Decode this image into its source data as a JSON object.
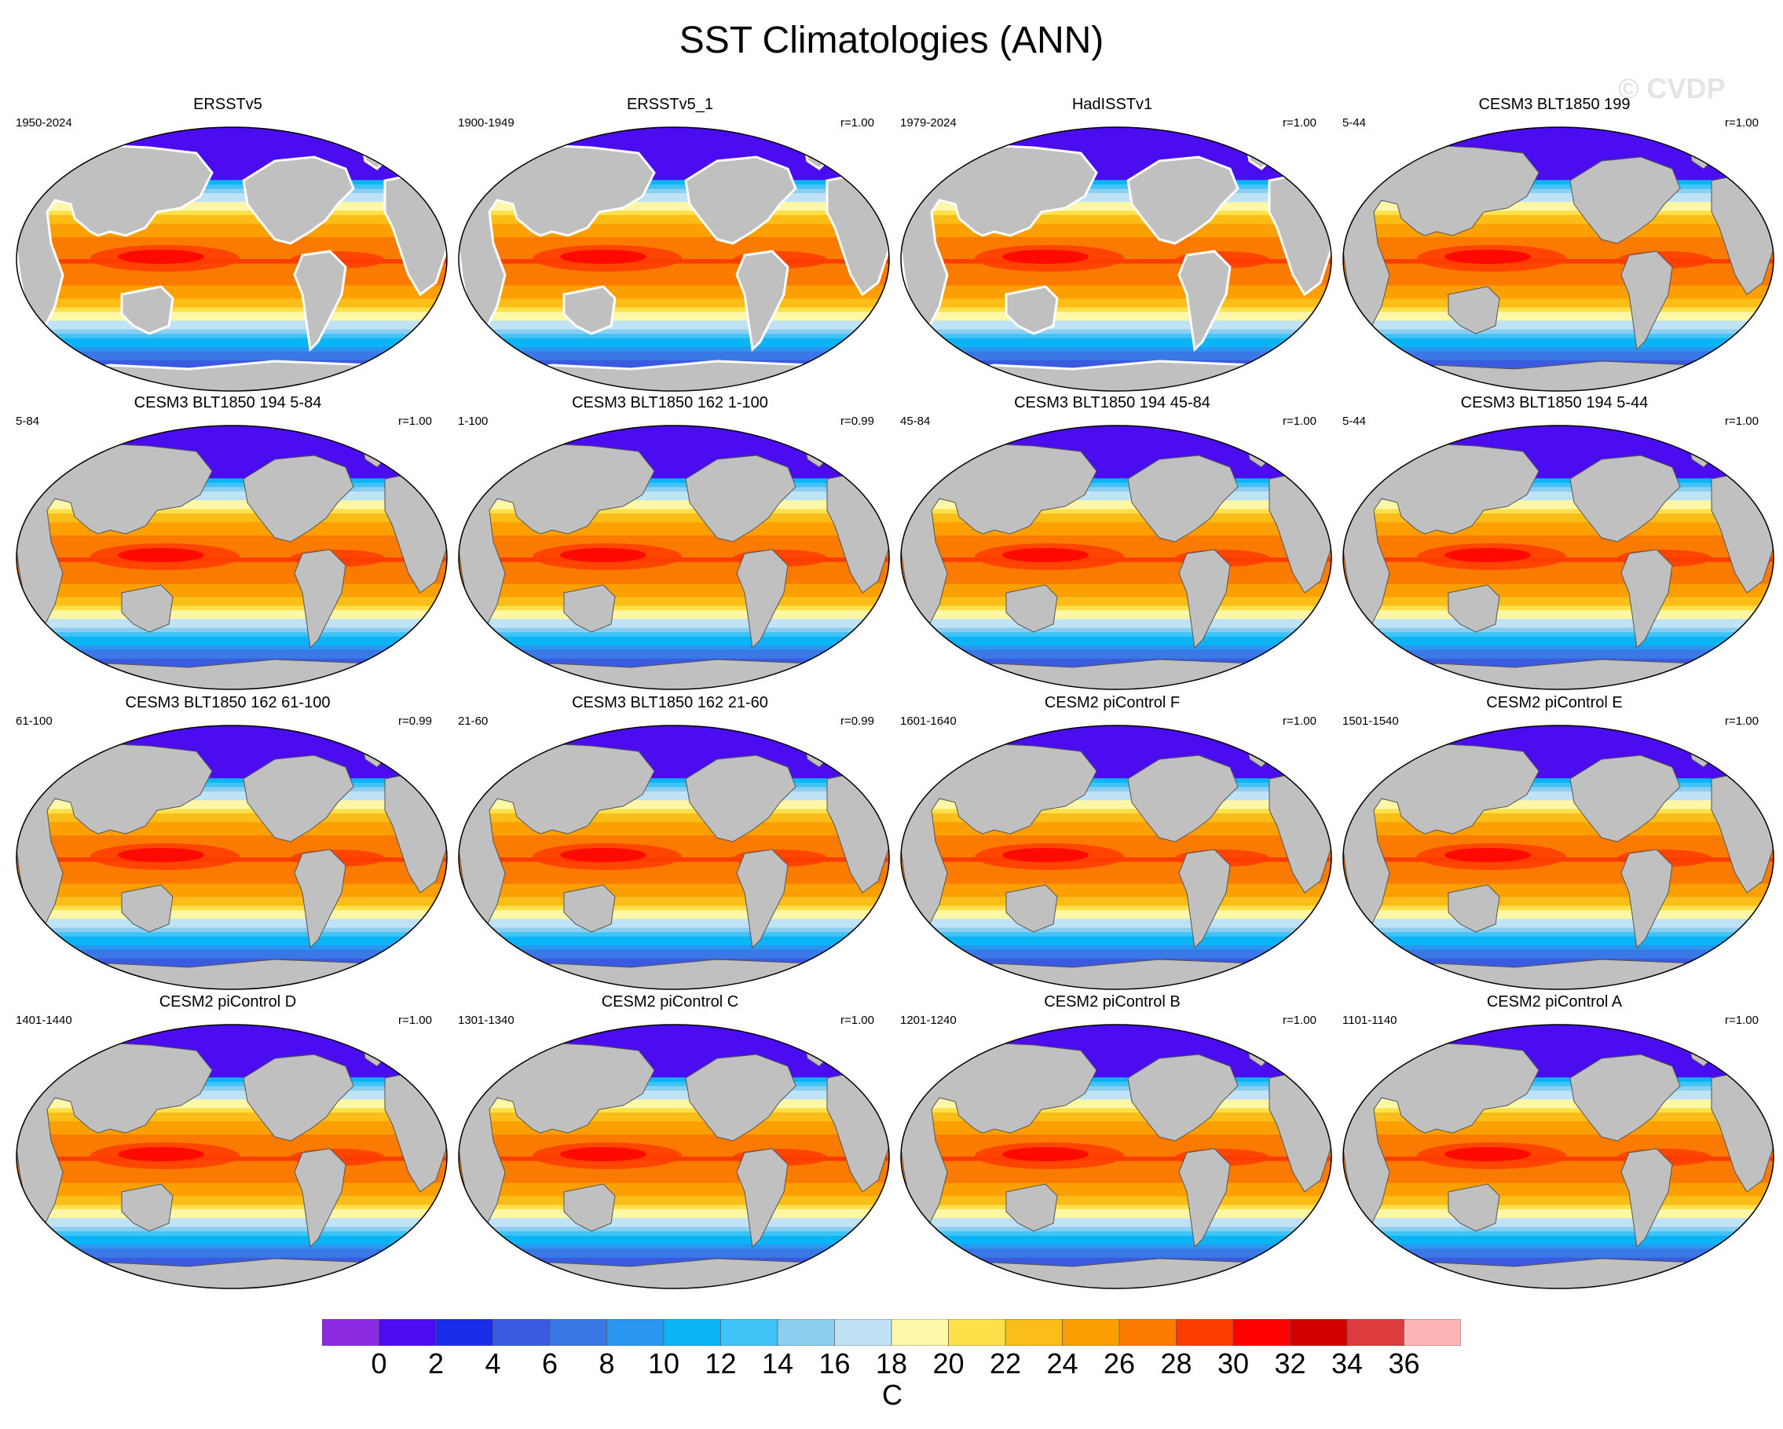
{
  "title": "SST Climatologies (ANN)",
  "watermark": "© CVDP",
  "panels": [
    {
      "title": "ERSSTv5",
      "years": "1950-2024",
      "corr": "",
      "land_missing": true
    },
    {
      "title": "ERSSTv5_1",
      "years": "1900-1949",
      "corr": "r=1.00",
      "land_missing": true
    },
    {
      "title": "HadISSTv1",
      "years": "1979-2024",
      "corr": "r=1.00",
      "land_missing": true
    },
    {
      "title": "CESM3 BLT1850 199",
      "years": "5-44",
      "corr": "r=1.00",
      "land_missing": false
    },
    {
      "title": "CESM3 BLT1850 194 5-84",
      "years": "5-84",
      "corr": "r=1.00",
      "land_missing": false
    },
    {
      "title": "CESM3 BLT1850 162 1-100",
      "years": "1-100",
      "corr": "r=0.99",
      "land_missing": false
    },
    {
      "title": "CESM3 BLT1850 194 45-84",
      "years": "45-84",
      "corr": "r=1.00",
      "land_missing": false
    },
    {
      "title": "CESM3 BLT1850 194 5-44",
      "years": "5-44",
      "corr": "r=1.00",
      "land_missing": false
    },
    {
      "title": "CESM3 BLT1850 162 61-100",
      "years": "61-100",
      "corr": "r=0.99",
      "land_missing": false
    },
    {
      "title": "CESM3 BLT1850 162 21-60",
      "years": "21-60",
      "corr": "r=0.99",
      "land_missing": false
    },
    {
      "title": "CESM2 piControl F",
      "years": "1601-1640",
      "corr": "r=1.00",
      "land_missing": false
    },
    {
      "title": "CESM2 piControl E",
      "years": "1501-1540",
      "corr": "r=1.00",
      "land_missing": false
    },
    {
      "title": "CESM2 piControl D",
      "years": "1401-1440",
      "corr": "r=1.00",
      "land_missing": false
    },
    {
      "title": "CESM2 piControl C",
      "years": "1301-1340",
      "corr": "r=1.00",
      "land_missing": false
    },
    {
      "title": "CESM2 piControl B",
      "years": "1201-1240",
      "corr": "r=1.00",
      "land_missing": false
    },
    {
      "title": "CESM2 piControl A",
      "years": "1101-1140",
      "corr": "r=1.00",
      "land_missing": false
    }
  ],
  "colorbar": {
    "labels": [
      "0",
      "2",
      "4",
      "6",
      "8",
      "10",
      "12",
      "14",
      "16",
      "18",
      "20",
      "22",
      "24",
      "26",
      "28",
      "30",
      "32",
      "34",
      "36"
    ],
    "colors": [
      "#8a2be2",
      "#4b0df0",
      "#1a2de8",
      "#3a5ae0",
      "#3a78e8",
      "#2a96f0",
      "#0ab4f5",
      "#40c4f8",
      "#8ccef0",
      "#bfe2f5",
      "#fff7a8",
      "#fde04a",
      "#fbbe18",
      "#fba000",
      "#fb7a00",
      "#ff3c00",
      "#ff0000",
      "#d20000",
      "#dc3c3c",
      "#fcb4b4"
    ],
    "units": "C"
  },
  "chart_data": {
    "type": "heatmap",
    "variable": "SST",
    "season": "ANN",
    "units": "C",
    "contour_levels": [
      0,
      2,
      4,
      6,
      8,
      10,
      12,
      14,
      16,
      18,
      20,
      22,
      24,
      26,
      28,
      30,
      32,
      34,
      36
    ],
    "projection": "Robinson (global map)",
    "layout": "4x4 panels",
    "land_color": "#c0c0c0",
    "missing_color": "#ffffff"
  }
}
